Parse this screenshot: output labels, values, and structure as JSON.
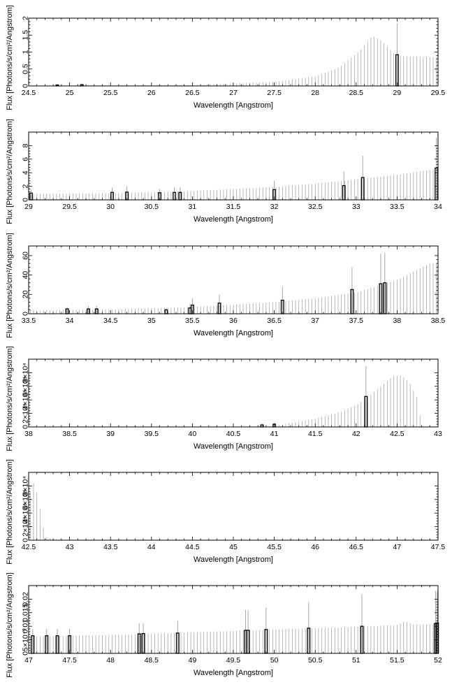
{
  "chart_data": [
    {
      "type": "bar",
      "xlabel": "Wavelength [Angstrom]",
      "ylabel": "Flux [Photons/s/cm²/Angstrom]",
      "xlim": [
        24.5,
        29.5
      ],
      "ylim": [
        0,
        2
      ],
      "xticks": [
        "24.5",
        "25",
        "25.5",
        "26",
        "26.5",
        "27",
        "27.5",
        "28",
        "28.5",
        "29",
        "29.5"
      ],
      "xtick_values": [
        24.5,
        25,
        25.5,
        26,
        26.5,
        27,
        27.5,
        28,
        28.5,
        29,
        29.5
      ],
      "yticks": [
        "0",
        "0.5",
        "1",
        "1.5",
        "2"
      ],
      "ytick_values": [
        0,
        0.5,
        1,
        1.5,
        2
      ],
      "spectrum": [
        [
          24.5,
          0.005
        ],
        [
          26.5,
          0.03
        ],
        [
          27.5,
          0.12
        ],
        [
          28.0,
          0.28
        ],
        [
          28.3,
          0.55
        ],
        [
          28.55,
          1.05
        ],
        [
          28.7,
          1.48
        ],
        [
          28.8,
          1.35
        ],
        [
          29.0,
          0.88
        ],
        [
          29.5,
          0.85
        ]
      ],
      "spectrum_step": 0.04,
      "strong_lines": [
        {
          "x": 29.0,
          "y": 0.92,
          "err": 1.85
        },
        {
          "x": 24.85,
          "y": 0.03,
          "err": 0.05
        },
        {
          "x": 25.15,
          "y": 0.04,
          "err": 0.06
        }
      ]
    },
    {
      "type": "bar",
      "xlabel": "Wavelength [Angstrom]",
      "ylabel": "Flux [Photons/s/cm²/Angstrom]",
      "xlim": [
        29,
        34
      ],
      "ylim": [
        0,
        10
      ],
      "xticks": [
        "29",
        "29.5",
        "30",
        "30.5",
        "31",
        "31.5",
        "32",
        "32.5",
        "33",
        "33.5",
        "34"
      ],
      "xtick_values": [
        29,
        29.5,
        30,
        30.5,
        31,
        31.5,
        32,
        32.5,
        33,
        33.5,
        34
      ],
      "yticks": [
        "0",
        "2",
        "4",
        "6",
        "8"
      ],
      "ytick_values": [
        0,
        2,
        4,
        6,
        8
      ],
      "spectrum": [
        [
          29,
          0.85
        ],
        [
          30,
          1.0
        ],
        [
          31,
          1.3
        ],
        [
          32,
          1.9
        ],
        [
          32.5,
          2.4
        ],
        [
          33,
          3.0
        ],
        [
          33.5,
          3.7
        ],
        [
          34,
          4.6
        ]
      ],
      "spectrum_step": 0.04,
      "strong_lines": [
        {
          "x": 29.03,
          "y": 1.0,
          "err": 1.5
        },
        {
          "x": 30.02,
          "y": 1.1,
          "err": 1.8
        },
        {
          "x": 30.2,
          "y": 1.15,
          "err": 2.0
        },
        {
          "x": 30.6,
          "y": 1.05,
          "err": 1.6
        },
        {
          "x": 30.78,
          "y": 1.1,
          "err": 1.9
        },
        {
          "x": 30.85,
          "y": 1.1,
          "err": 1.9
        },
        {
          "x": 32.0,
          "y": 1.5,
          "err": 2.8
        },
        {
          "x": 32.85,
          "y": 2.1,
          "err": 4.2
        },
        {
          "x": 33.08,
          "y": 3.3,
          "err": 6.5
        },
        {
          "x": 33.98,
          "y": 4.7,
          "err": 9.2
        }
      ]
    },
    {
      "type": "bar",
      "xlabel": "Wavelength [Angstrom]",
      "ylabel": "Flux [Photons/s/cm²/Angstrom]",
      "xlim": [
        33.5,
        38.5
      ],
      "ylim": [
        0,
        70
      ],
      "xticks": [
        "33.5",
        "34",
        "34.5",
        "35",
        "35.5",
        "36",
        "36.5",
        "37",
        "37.5",
        "38",
        "38.5"
      ],
      "xtick_values": [
        33.5,
        34,
        34.5,
        35,
        35.5,
        36,
        36.5,
        37,
        37.5,
        38,
        38.5
      ],
      "yticks": [
        "0",
        "20",
        "40",
        "60"
      ],
      "ytick_values": [
        0,
        20,
        40,
        60
      ],
      "spectrum": [
        [
          33.5,
          3.5
        ],
        [
          34.5,
          4.5
        ],
        [
          35.5,
          7
        ],
        [
          36.5,
          12
        ],
        [
          37,
          16
        ],
        [
          37.5,
          22
        ],
        [
          38,
          35
        ],
        [
          38.4,
          52
        ]
      ],
      "spectrum_step": 0.04,
      "strong_lines": [
        {
          "x": 33.97,
          "y": 5,
          "err": 7
        },
        {
          "x": 34.23,
          "y": 5,
          "err": 8
        },
        {
          "x": 34.33,
          "y": 5,
          "err": 8
        },
        {
          "x": 35.18,
          "y": 4,
          "err": 6
        },
        {
          "x": 35.47,
          "y": 6,
          "err": 10
        },
        {
          "x": 35.5,
          "y": 9,
          "err": 16
        },
        {
          "x": 35.83,
          "y": 11,
          "err": 20
        },
        {
          "x": 36.6,
          "y": 14,
          "err": 28
        },
        {
          "x": 37.45,
          "y": 25,
          "err": 48
        },
        {
          "x": 37.8,
          "y": 31,
          "err": 62
        },
        {
          "x": 37.85,
          "y": 32,
          "err": 63
        }
      ]
    },
    {
      "type": "bar",
      "xlabel": "Wavelength [Angstrom]",
      "ylabel": "Flux [Photons/s/cm²/Angstrom]",
      "xlim": [
        38,
        43
      ],
      "ylim": [
        0,
        100000
      ],
      "xticks": [
        "38",
        "38.5",
        "39",
        "39.5",
        "40",
        "40.5",
        "41",
        "41.5",
        "42",
        "42.5",
        "43"
      ],
      "xtick_values": [
        38,
        38.5,
        39,
        39.5,
        40,
        40.5,
        41,
        41.5,
        42,
        42.5,
        43
      ],
      "yticks": [
        "0",
        "2×10⁴",
        "4×10⁴",
        "6×10⁴",
        "8×10⁴"
      ],
      "ytick_values": [
        0,
        20000,
        40000,
        60000,
        80000
      ],
      "spectrum": [
        [
          38,
          0
        ],
        [
          40.5,
          200
        ],
        [
          41,
          1500
        ],
        [
          41.5,
          12000
        ],
        [
          41.8,
          22000
        ],
        [
          42.0,
          32000
        ],
        [
          42.15,
          45000
        ],
        [
          42.3,
          60000
        ],
        [
          42.45,
          75000
        ],
        [
          42.55,
          76000
        ],
        [
          42.65,
          66000
        ],
        [
          42.75,
          42000
        ],
        [
          42.8,
          0
        ],
        [
          43,
          0
        ]
      ],
      "spectrum_step": 0.04,
      "strong_lines": [
        {
          "x": 40.85,
          "y": 3000,
          "err": 5000
        },
        {
          "x": 41.0,
          "y": 4000,
          "err": 6000
        },
        {
          "x": 42.12,
          "y": 45000,
          "err": 90000
        }
      ]
    },
    {
      "type": "bar",
      "xlabel": "Wavelength [Angstrom]",
      "ylabel": "Flux [Photons/s/cm²/Angstrom]",
      "xlim": [
        42.5,
        47.5
      ],
      "ylim": [
        0,
        100000
      ],
      "xticks": [
        "42.5",
        "43",
        "43.5",
        "44",
        "44.5",
        "45",
        "45.5",
        "46",
        "46.5",
        "47",
        "47.5"
      ],
      "xtick_values": [
        42.5,
        43,
        43.5,
        44,
        44.5,
        45,
        45.5,
        46,
        46.5,
        47,
        47.5
      ],
      "yticks": [
        "0",
        "2×10⁴",
        "4×10⁴",
        "6×10⁴",
        "8×10⁴"
      ],
      "ytick_values": [
        0,
        20000,
        40000,
        60000,
        80000
      ],
      "spectrum": [
        [
          42.5,
          60000
        ],
        [
          42.55,
          88000
        ],
        [
          42.6,
          70000
        ],
        [
          42.65,
          40000
        ],
        [
          42.7,
          5000
        ],
        [
          42.8,
          1500
        ],
        [
          43.0,
          0
        ],
        [
          47.5,
          0
        ]
      ],
      "spectrum_step": 0.04,
      "strong_lines": []
    },
    {
      "type": "bar",
      "xlabel": "Wavelength [Angstrom]",
      "ylabel": "Flux [Photons/s/cm²/Angstrom]",
      "xlim": [
        47,
        52
      ],
      "ylim": [
        0,
        0.025
      ],
      "xticks": [
        "47",
        "47.5",
        "48",
        "48.5",
        "49",
        "49.5",
        "50",
        "50.5",
        "51",
        "51.5",
        "52"
      ],
      "xtick_values": [
        47,
        47.5,
        48,
        48.5,
        49,
        49.5,
        50,
        50.5,
        51,
        51.5,
        52
      ],
      "yticks": [
        "0",
        "5×10⁻³",
        "0.01",
        "0.015",
        "0.02"
      ],
      "ytick_values": [
        0,
        0.005,
        0.01,
        0.015,
        0.02
      ],
      "spectrum": [
        [
          47,
          0.0062
        ],
        [
          48,
          0.0068
        ],
        [
          49,
          0.0078
        ],
        [
          50,
          0.0088
        ],
        [
          51,
          0.0098
        ],
        [
          51.5,
          0.0105
        ],
        [
          51.6,
          0.0118
        ],
        [
          51.7,
          0.0106
        ],
        [
          52,
          0.0108
        ]
      ],
      "spectrum_step": 0.04,
      "strong_lines": [
        {
          "x": 47.05,
          "y": 0.0065,
          "err": 0.009
        },
        {
          "x": 47.22,
          "y": 0.0065,
          "err": 0.009
        },
        {
          "x": 47.35,
          "y": 0.0065,
          "err": 0.009
        },
        {
          "x": 47.5,
          "y": 0.0065,
          "err": 0.009
        },
        {
          "x": 48.35,
          "y": 0.0072,
          "err": 0.011
        },
        {
          "x": 48.4,
          "y": 0.0073,
          "err": 0.011
        },
        {
          "x": 48.82,
          "y": 0.0075,
          "err": 0.012
        },
        {
          "x": 49.65,
          "y": 0.0085,
          "err": 0.016
        },
        {
          "x": 49.68,
          "y": 0.0085,
          "err": 0.016
        },
        {
          "x": 49.9,
          "y": 0.0088,
          "err": 0.017
        },
        {
          "x": 50.42,
          "y": 0.0093,
          "err": 0.019
        },
        {
          "x": 51.07,
          "y": 0.01,
          "err": 0.022
        },
        {
          "x": 51.97,
          "y": 0.011,
          "err": 0.023
        },
        {
          "x": 51.99,
          "y": 0.0112,
          "err": 0.023
        }
      ]
    }
  ]
}
